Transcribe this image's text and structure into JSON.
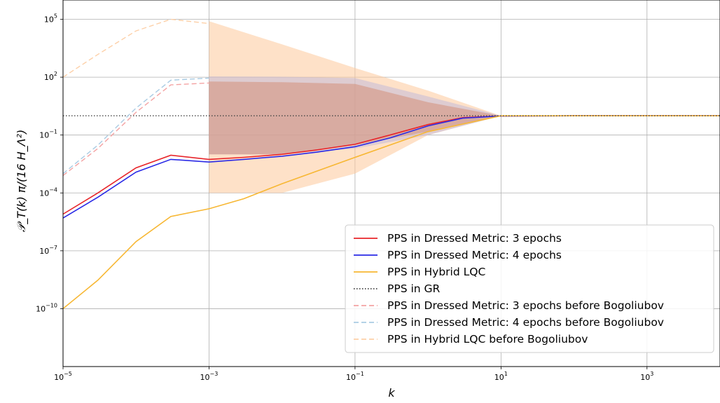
{
  "chart_data": {
    "type": "line",
    "xscale": "log",
    "yscale": "log",
    "xlim": [
      1e-05,
      10000
    ],
    "ylim": [
      1e-13,
      1000000
    ],
    "xlabel": "k",
    "ylabel": "𝒫_T(k) π/(16 H_Λ²)",
    "grid": true,
    "legend_position": "lower-right",
    "x_ticks": [
      {
        "value": 1e-05,
        "label": "10^−5"
      },
      {
        "value": 0.001,
        "label": "10^−3"
      },
      {
        "value": 0.1,
        "label": "10^−1"
      },
      {
        "value": 10,
        "label": "10^1"
      },
      {
        "value": 1000,
        "label": "10^3"
      }
    ],
    "y_ticks": [
      {
        "value": 1e-10,
        "label": "10^−10"
      },
      {
        "value": 1e-07,
        "label": "10^−7"
      },
      {
        "value": 0.0001,
        "label": "10^−4"
      },
      {
        "value": 0.1,
        "label": "10^−1"
      },
      {
        "value": 100,
        "label": "10^2"
      },
      {
        "value": 100000,
        "label": "10^5"
      }
    ],
    "series": [
      {
        "name": "PPS in Dressed Metric: 3 epochs",
        "color": "#e8252a",
        "style": "solid",
        "x": [
          1e-05,
          3e-05,
          0.0001,
          0.0003,
          0.001,
          0.003,
          0.01,
          0.03,
          0.1,
          0.3,
          1,
          3,
          10,
          100,
          10000
        ],
        "y": [
          8e-06,
          0.0001,
          0.002,
          0.009,
          0.0055,
          0.007,
          0.01,
          0.017,
          0.033,
          0.1,
          0.35,
          0.8,
          0.97,
          1.0,
          1.0
        ]
      },
      {
        "name": "PPS in Dressed Metric: 4 epochs",
        "color": "#2a2ae6",
        "style": "solid",
        "x": [
          1e-05,
          3e-05,
          0.0001,
          0.0003,
          0.001,
          0.003,
          0.01,
          0.03,
          0.1,
          0.3,
          1,
          3,
          10,
          100,
          10000
        ],
        "y": [
          5e-06,
          6e-05,
          0.0012,
          0.0055,
          0.004,
          0.0055,
          0.008,
          0.013,
          0.025,
          0.07,
          0.3,
          0.75,
          0.97,
          1.0,
          1.0
        ]
      },
      {
        "name": "PPS in Hybrid LQC",
        "color": "#f7b733",
        "style": "solid",
        "x": [
          1e-05,
          3e-05,
          0.0001,
          0.0003,
          0.001,
          0.003,
          0.01,
          0.1,
          1,
          10,
          100,
          10000
        ],
        "y": [
          1e-10,
          3e-09,
          3e-07,
          6e-06,
          1.5e-05,
          5e-05,
          0.0003,
          0.007,
          0.15,
          1.0,
          1.0,
          1.0
        ]
      },
      {
        "name": "PPS in GR",
        "color": "#444444",
        "style": "dotted",
        "x": [
          1e-05,
          10000
        ],
        "y": [
          1.0,
          1.0
        ]
      },
      {
        "name": "PPS in Dressed Metric: 3 epochs before Bogoliubov",
        "color": "#f4a3a3",
        "style": "dashed",
        "x": [
          1e-05,
          3e-05,
          0.0001,
          0.0003,
          0.001
        ],
        "y": [
          0.0008,
          0.02,
          1.5,
          40,
          50
        ]
      },
      {
        "name": "PPS in Dressed Metric: 4 epochs before Bogoliubov",
        "color": "#a9cbe3",
        "style": "dashed",
        "x": [
          1e-05,
          3e-05,
          0.0001,
          0.0003,
          0.001
        ],
        "y": [
          0.001,
          0.03,
          2.5,
          70,
          90
        ]
      },
      {
        "name": "PPS in Hybrid LQC before Bogoliubov",
        "color": "#fdd0a8",
        "style": "dashed",
        "x": [
          1e-05,
          3e-05,
          0.0001,
          0.0003,
          0.001
        ],
        "y": [
          100,
          1500,
          25000,
          100000,
          60000
        ]
      }
    ],
    "oscillation_bands": [
      {
        "series": "PPS in Hybrid LQC before Bogoliubov",
        "color": "#fdc89b",
        "opacity": 0.55,
        "x": [
          0.001,
          0.01,
          0.1,
          1,
          10
        ],
        "upper": [
          80000,
          5000,
          300,
          20,
          1.0
        ],
        "lower": [
          0.0001,
          0.0001,
          0.001,
          0.1,
          1.0
        ]
      },
      {
        "series": "PPS in Dressed Metric: 4 epochs before Bogoliubov",
        "color": "#b9b4dc",
        "opacity": 0.45,
        "x": [
          0.001,
          0.01,
          0.1,
          1,
          10
        ],
        "upper": [
          110,
          105,
          90,
          10,
          1.0
        ],
        "lower": [
          0.01,
          0.01,
          0.02,
          0.1,
          1.0
        ]
      },
      {
        "series": "PPS in Dressed Metric: 3 epochs before Bogoliubov",
        "color": "#d4907a",
        "opacity": 0.55,
        "x": [
          0.001,
          0.01,
          0.1,
          1,
          10
        ],
        "upper": [
          60,
          55,
          45,
          5,
          1.0
        ],
        "lower": [
          0.01,
          0.01,
          0.03,
          0.15,
          1.0
        ]
      }
    ]
  }
}
